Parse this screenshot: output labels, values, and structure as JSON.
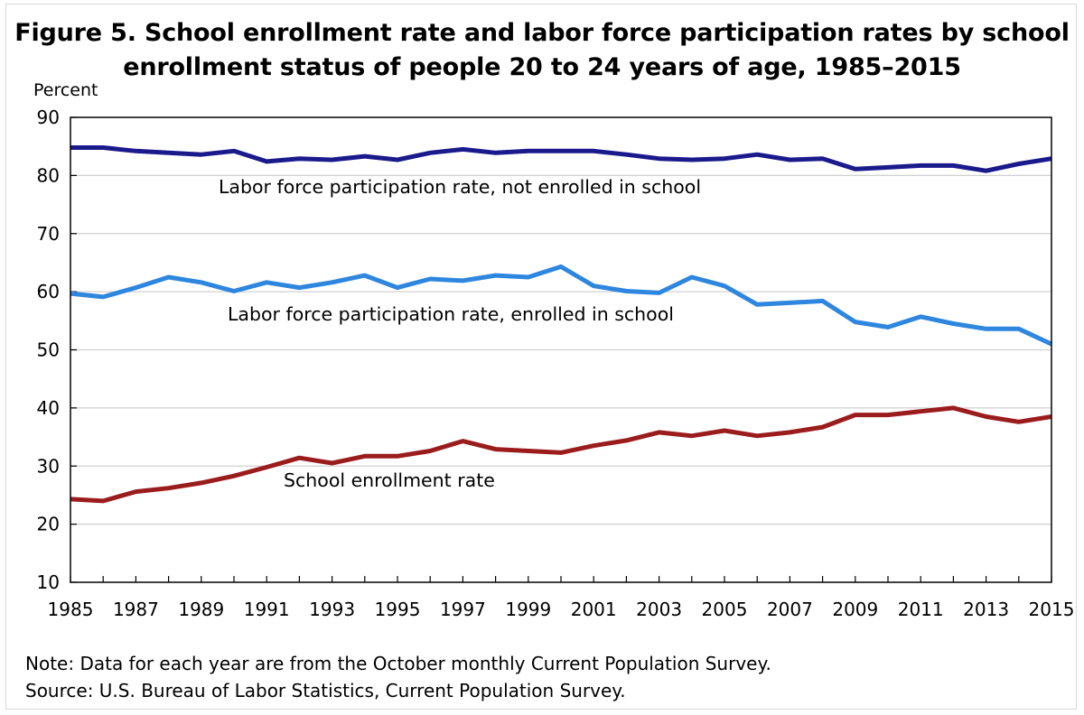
{
  "title_line1": "Figure 5. School enrollment rate and labor force participation rates by school",
  "title_line2": "enrollment status of people 20 to 24 years of age, 1985–2015",
  "note": "Note: Data for each year are from the October monthly Current Population Survey.",
  "source": "Source: U.S. Bureau of Labor Statistics, Current Population Survey.",
  "chart_data": {
    "type": "line",
    "title": "Figure 5. School enrollment rate and labor force participation rates by school enrollment status of people 20 to 24 years of age, 1985–2015",
    "ylabel": "Percent",
    "xlabel": "",
    "ylim": [
      10,
      90
    ],
    "yticks": [
      10,
      20,
      30,
      40,
      50,
      60,
      70,
      80,
      90
    ],
    "xlim": [
      1985,
      2015
    ],
    "xticks": [
      1985,
      1987,
      1989,
      1991,
      1993,
      1995,
      1997,
      1999,
      2001,
      2003,
      2005,
      2007,
      2009,
      2011,
      2013,
      2015
    ],
    "grid": "horizontal",
    "legend": "inline labels",
    "x": [
      1985,
      1986,
      1987,
      1988,
      1989,
      1990,
      1991,
      1992,
      1993,
      1994,
      1995,
      1996,
      1997,
      1998,
      1999,
      2000,
      2001,
      2002,
      2003,
      2004,
      2005,
      2006,
      2007,
      2008,
      2009,
      2010,
      2011,
      2012,
      2013,
      2014,
      2015
    ],
    "series": [
      {
        "name": "Labor force participation rate, not enrolled in school",
        "color": "#1a1a8c",
        "values": [
          84.8,
          84.8,
          84.2,
          83.9,
          83.6,
          84.2,
          82.4,
          82.9,
          82.7,
          83.3,
          82.7,
          83.9,
          84.5,
          83.9,
          84.2,
          84.2,
          84.2,
          83.6,
          82.9,
          82.7,
          82.9,
          83.6,
          82.7,
          82.9,
          81.1,
          81.4,
          81.7,
          81.7,
          80.8,
          82.0,
          82.9
        ]
      },
      {
        "name": "Labor force participation rate, enrolled in school",
        "color": "#2e86de",
        "values": [
          59.7,
          59.1,
          60.7,
          62.5,
          61.6,
          60.1,
          61.6,
          60.7,
          61.6,
          62.8,
          60.7,
          62.2,
          61.9,
          62.8,
          62.5,
          64.3,
          61.0,
          60.1,
          59.8,
          62.5,
          61.0,
          57.8,
          58.1,
          58.4,
          54.8,
          53.9,
          55.7,
          54.5,
          53.6,
          53.6,
          51.0
        ]
      },
      {
        "name": "School enrollment rate",
        "color": "#9b1c1c",
        "values": [
          24.3,
          24.0,
          25.6,
          26.2,
          27.1,
          28.3,
          29.8,
          31.4,
          30.5,
          31.7,
          31.7,
          32.6,
          34.3,
          32.9,
          32.6,
          32.3,
          33.5,
          34.4,
          35.8,
          35.2,
          36.1,
          35.2,
          35.8,
          36.7,
          38.8,
          38.8,
          39.4,
          40.0,
          38.5,
          37.6,
          38.5
        ]
      }
    ]
  }
}
